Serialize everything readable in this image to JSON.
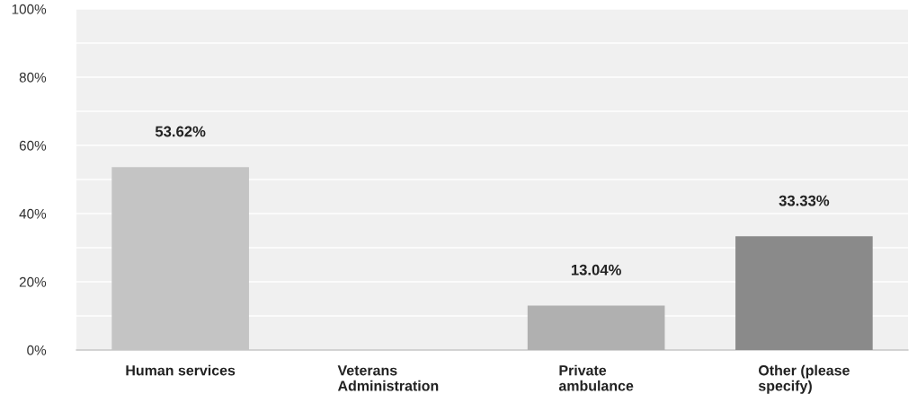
{
  "chart_data": {
    "type": "bar",
    "categories": [
      "Human services",
      "Veterans\nAdministration",
      "Private\nambulance",
      "Other (please\nspecify)"
    ],
    "values": [
      53.62,
      0,
      13.04,
      33.33
    ],
    "colors": [
      "#c4c4c4",
      "#c4c4c4",
      "#b0b0b0",
      "#8a8a8a"
    ],
    "value_labels": [
      "53.62%",
      null,
      "13.04%",
      "33.33%"
    ],
    "ylim": [
      0,
      100
    ],
    "yticks": [
      {
        "value": 0,
        "label": "0%"
      },
      {
        "value": 10,
        "label": null
      },
      {
        "value": 20,
        "label": "20%"
      },
      {
        "value": 30,
        "label": null
      },
      {
        "value": 40,
        "label": "40%"
      },
      {
        "value": 50,
        "label": null
      },
      {
        "value": 60,
        "label": "60%"
      },
      {
        "value": 70,
        "label": null
      },
      {
        "value": 80,
        "label": "80%"
      },
      {
        "value": 90,
        "label": null
      },
      {
        "value": 100,
        "label": "100%"
      }
    ],
    "grid": "y"
  }
}
